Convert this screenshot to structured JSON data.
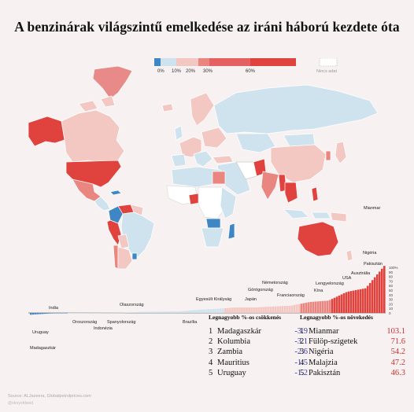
{
  "title": "A benzinárak világszintű emelkedése az iráni háború kezdete óta",
  "legend": {
    "ticks": [
      "0%",
      "10%",
      "20%",
      "30%",
      "60%"
    ],
    "no_data_label": "Nincs adat",
    "colors": [
      "#3f86c4",
      "#cfe3ef",
      "#f3c7c2",
      "#ea8680",
      "#e0423e"
    ]
  },
  "colors": {
    "strong_red": "#e0423e",
    "mid_red": "#ea8680",
    "light_red": "#f3c7c2",
    "pale_blue": "#cfe3ef",
    "blue": "#3f86c4",
    "no_data": "#ffffff"
  },
  "chart_data": {
    "type": "bar",
    "ylabel": "",
    "ylim": [
      -10,
      105
    ],
    "yticks": [
      "100%",
      "90",
      "80",
      "70",
      "60",
      "50",
      "40",
      "30",
      "20",
      "10",
      "0"
    ],
    "annotations": [
      {
        "label": "India",
        "value": 3.5
      },
      {
        "label": "Uruguay",
        "value": -1.2
      },
      {
        "label": "Madagaszkár",
        "value": -3.9
      },
      {
        "label": "Olaszország",
        "value": 0.4
      },
      {
        "label": "Oroszország",
        "value": 0.2
      },
      {
        "label": "Spanyolország",
        "value": 0.5
      },
      {
        "label": "Indonézia",
        "value": 0.1
      },
      {
        "label": "Egyesült Királyság",
        "value": 2.5
      },
      {
        "label": "Brazília",
        "value": 2.8
      },
      {
        "label": "Japán",
        "value": 7
      },
      {
        "label": "Görögország",
        "value": 9
      },
      {
        "label": "Németország",
        "value": 12
      },
      {
        "label": "Franciaország",
        "value": 12
      },
      {
        "label": "Kína",
        "value": 14
      },
      {
        "label": "Lengyelország",
        "value": 16
      },
      {
        "label": "USA",
        "value": 24
      },
      {
        "label": "Ausztrália",
        "value": 27
      },
      {
        "label": "Pakisztán",
        "value": 46.3
      },
      {
        "label": "Nigéria",
        "value": 54.2
      },
      {
        "label": "Mianmar",
        "value": 103.1
      }
    ]
  },
  "tables": {
    "decrease": {
      "title": "Legnagyobb %-os csökkenés",
      "rows": [
        {
          "rank": "1",
          "country": "Madagaszkár",
          "value": "-3.9"
        },
        {
          "rank": "2",
          "country": "Kolumbia",
          "value": "-3.1"
        },
        {
          "rank": "3",
          "country": "Zambia",
          "value": "-2.6"
        },
        {
          "rank": "4",
          "country": "Mauritius",
          "value": "-1.5"
        },
        {
          "rank": "5",
          "country": "Uruguay",
          "value": "-1.2"
        }
      ]
    },
    "increase": {
      "title": "Legnagyobb %-os növekedés",
      "rows": [
        {
          "rank": "1",
          "country": "Mianmar",
          "value": "103.1"
        },
        {
          "rank": "2",
          "country": "Fülöp-szigetek",
          "value": "71.6"
        },
        {
          "rank": "3",
          "country": "Nigéria",
          "value": "54.2"
        },
        {
          "rank": "4",
          "country": "Malajzia",
          "value": "47.2"
        },
        {
          "rank": "5",
          "country": "Pakisztán",
          "value": "46.3"
        }
      ]
    }
  },
  "source": "Source: ALJazeera, Globalpetrolprices.com",
  "handle": "@storyofdavid"
}
